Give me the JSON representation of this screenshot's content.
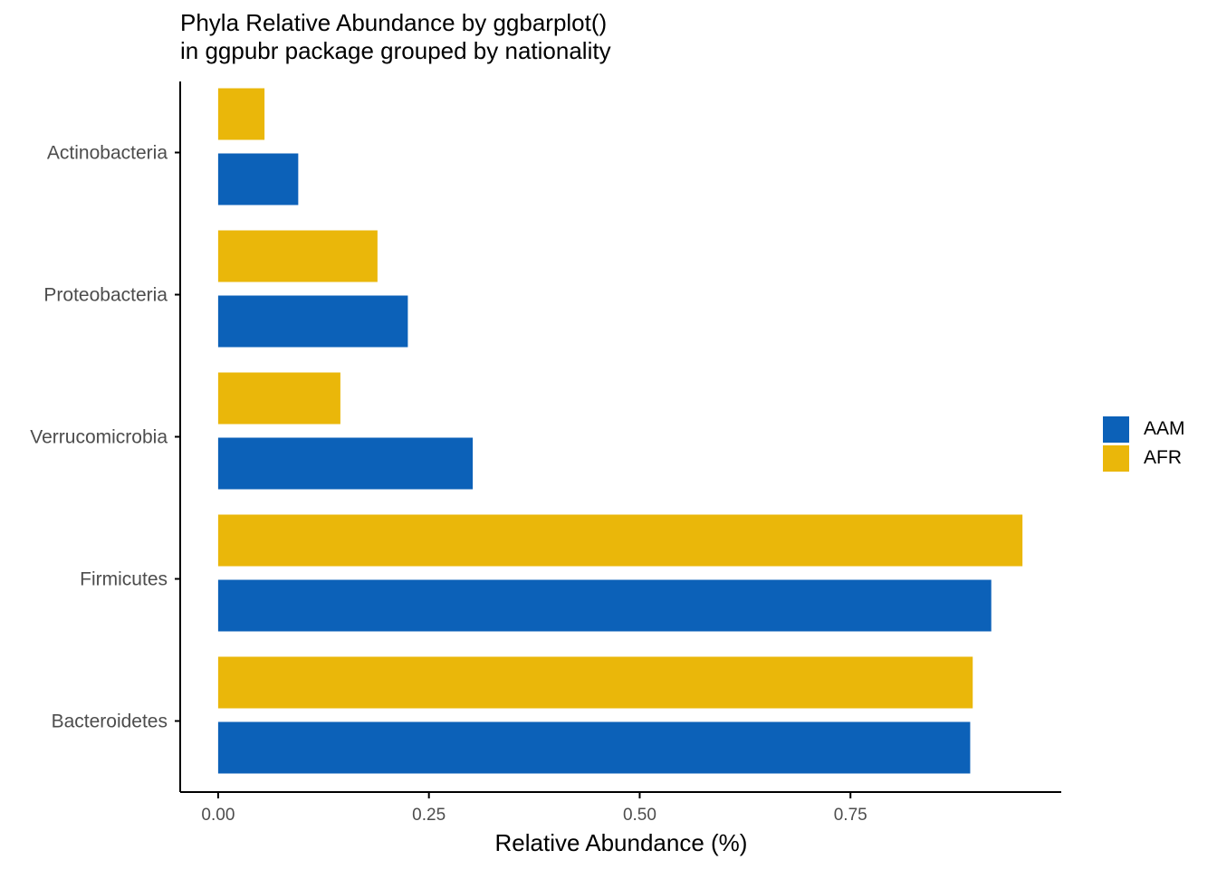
{
  "chart_data": {
    "type": "bar",
    "orientation": "horizontal",
    "title": "Phyla Relative Abundance by ggbarplot()",
    "subtitle": "in ggpubr package grouped by nationality",
    "xlabel": "Relative Abundance (%)",
    "ylabel": "",
    "categories": [
      "Actinobacteria",
      "Proteobacteria",
      "Verrucomicrobia",
      "Firmicutes",
      "Bacteroidetes"
    ],
    "series": [
      {
        "name": "AAM",
        "color": "#0C61B8",
        "values": [
          0.095,
          0.225,
          0.302,
          0.917,
          0.892
        ]
      },
      {
        "name": "AFR",
        "color": "#EAB70A",
        "values": [
          0.055,
          0.189,
          0.145,
          0.954,
          0.895
        ]
      }
    ],
    "xlim": [
      -0.045,
      1.0
    ],
    "xticks": [
      0.0,
      0.25,
      0.5,
      0.75
    ],
    "xtick_labels": [
      "0.00",
      "0.25",
      "0.50",
      "0.75"
    ],
    "grid": false,
    "legend_position": "right"
  }
}
